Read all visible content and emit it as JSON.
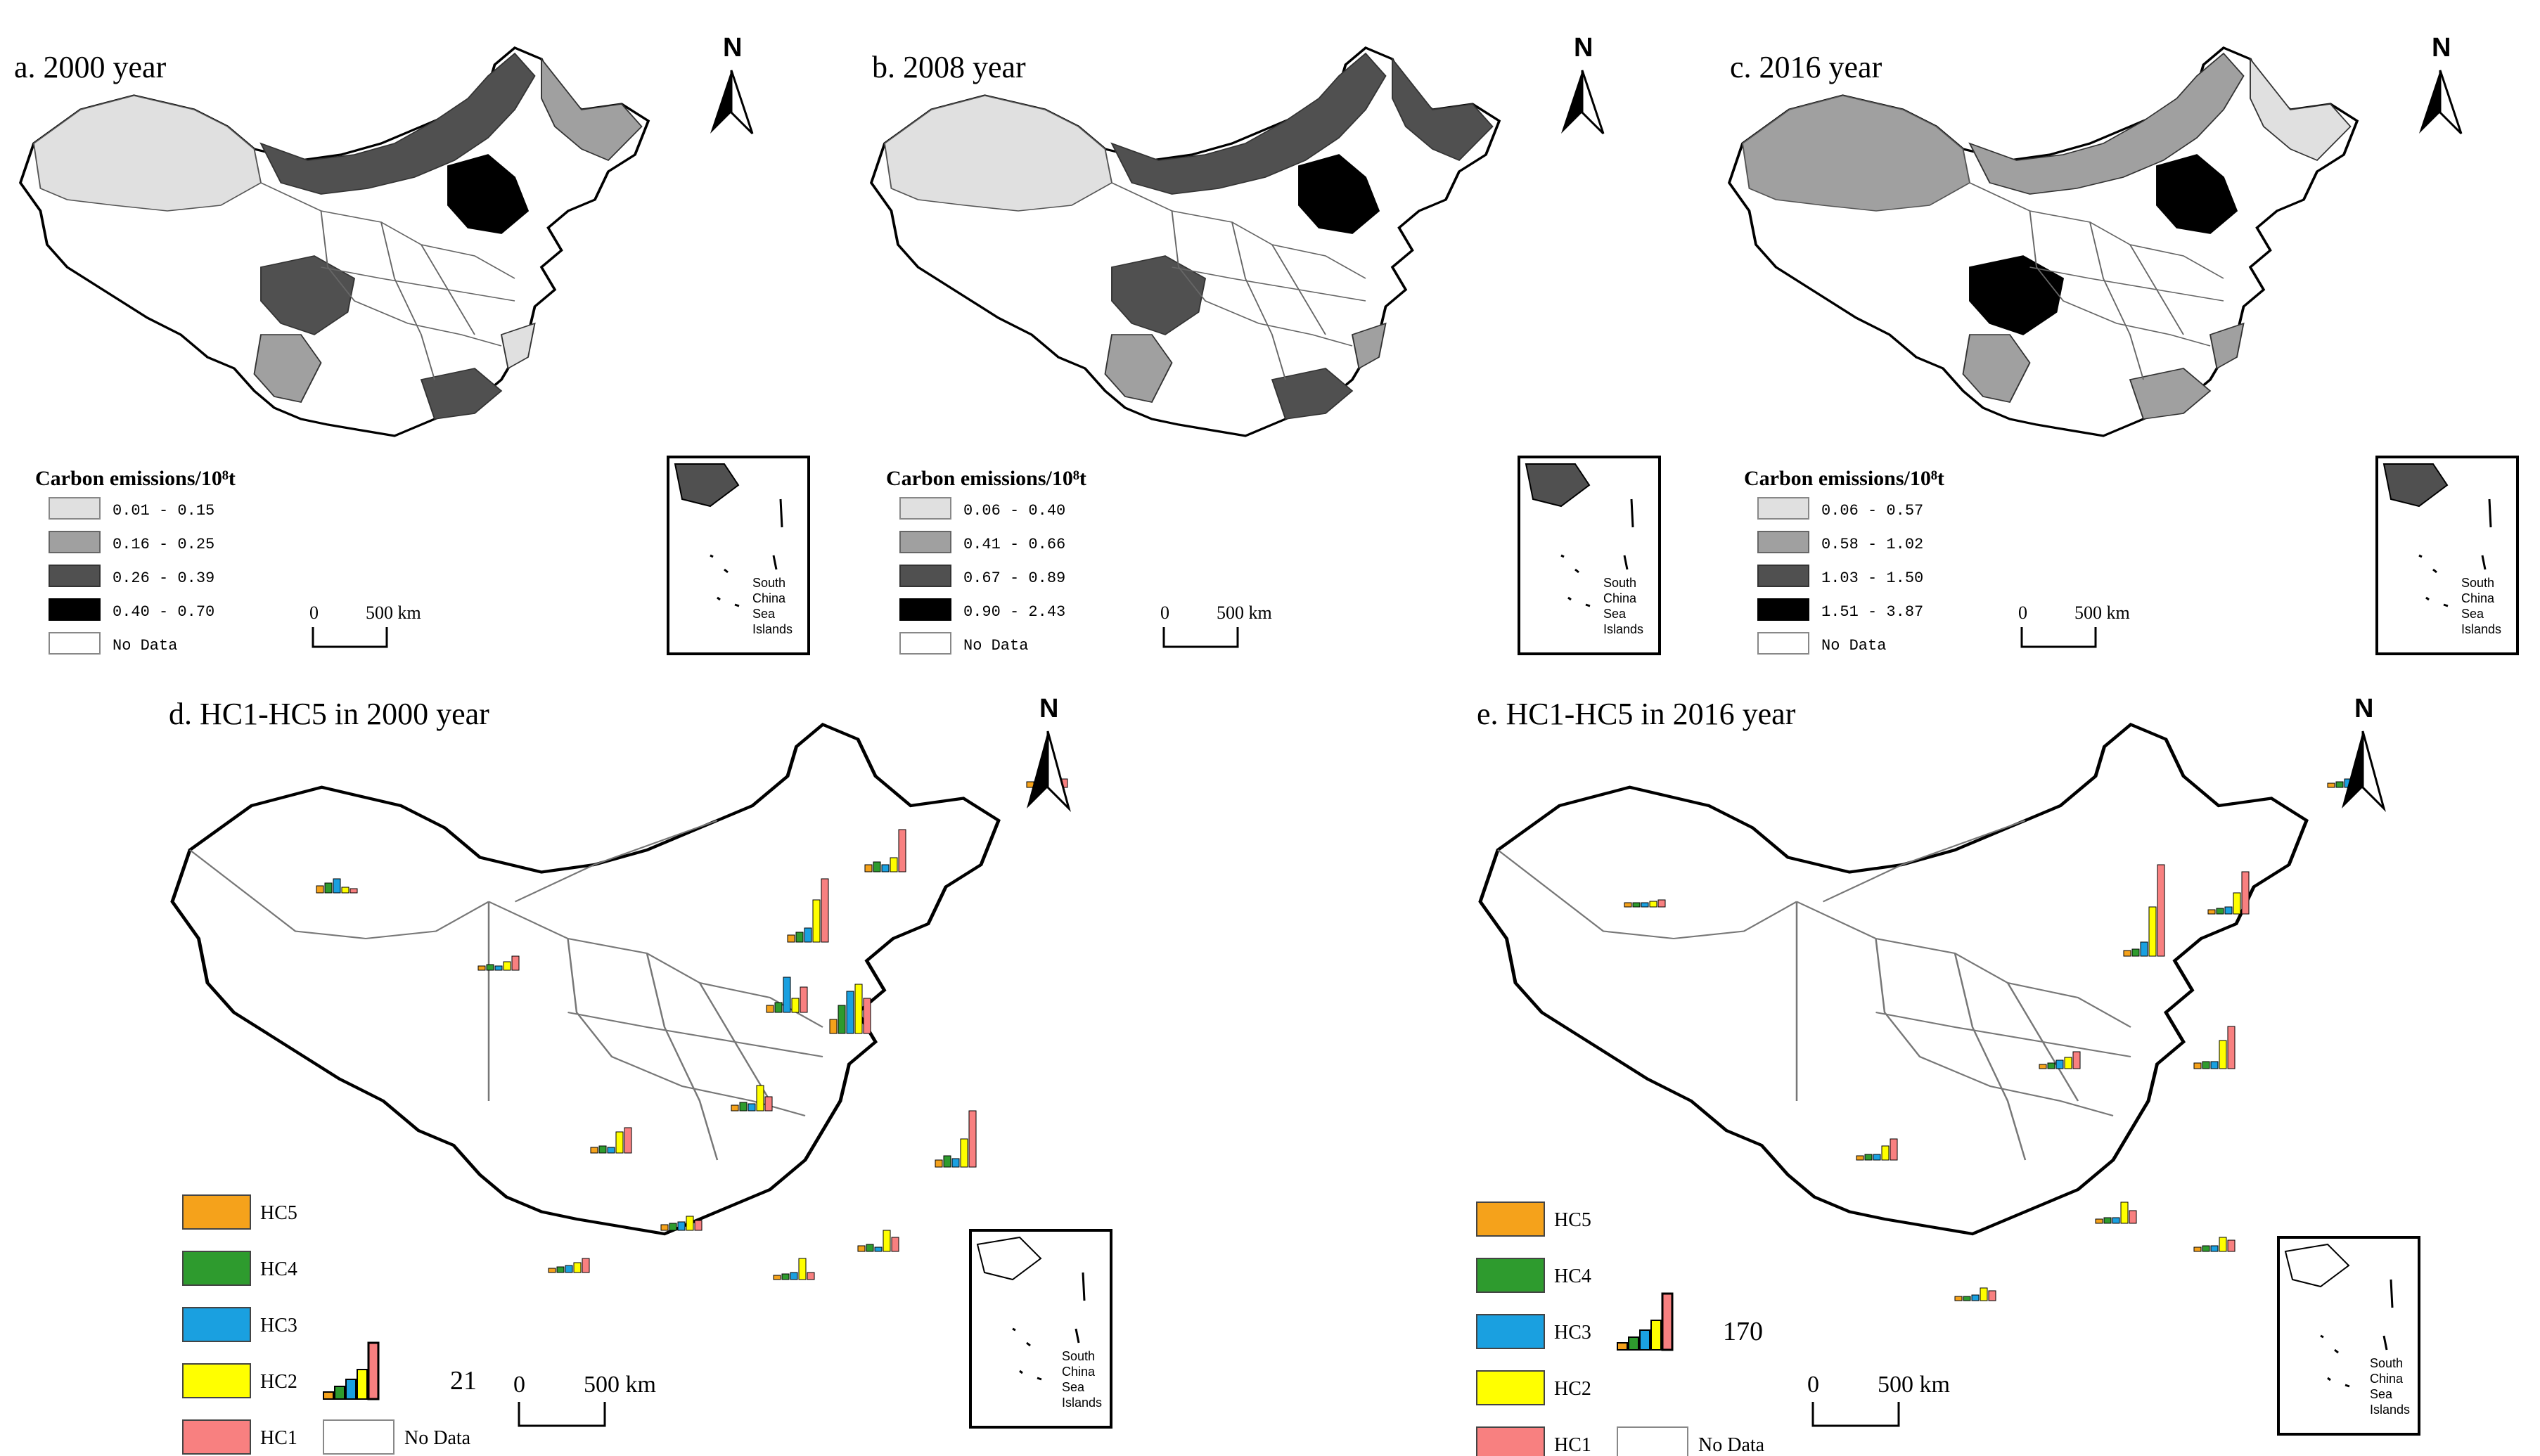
{
  "north_label": "N",
  "scale": {
    "zero": "0",
    "distance": "500 km"
  },
  "inset_label": [
    "South",
    "China",
    "Sea",
    "Islands"
  ],
  "colors": {
    "class1": "#e0e0e0",
    "class2": "#a0a0a0",
    "class3": "#505050",
    "class4": "#000000",
    "nodata": "#ffffff",
    "HC5": "#f5a21b",
    "HC4": "#2e9b2e",
    "HC3": "#1aa0e0",
    "HC2": "#ffff00",
    "HC1": "#f88080"
  },
  "maps": [
    {
      "id": "a",
      "title": "a. 2000 year",
      "legend_title": "Carbon emissions/10⁸t",
      "classes": [
        "0.01 - 0.15",
        "0.16 - 0.25",
        "0.26 - 0.39",
        "0.40 - 0.70"
      ],
      "nodata": "No Data"
    },
    {
      "id": "b",
      "title": "b. 2008 year",
      "legend_title": "Carbon emissions/10⁸t",
      "classes": [
        "0.06 - 0.40",
        "0.41 - 0.66",
        "0.67 - 0.89",
        "0.90 - 2.43"
      ],
      "nodata": "No Data"
    },
    {
      "id": "c",
      "title": "c. 2016 year",
      "legend_title": "Carbon emissions/10⁸t",
      "classes": [
        "0.06 - 0.57",
        "0.58 - 1.02",
        "1.03 - 1.50",
        "1.51 - 3.87"
      ],
      "nodata": "No Data"
    }
  ],
  "hc_maps": [
    {
      "id": "d",
      "title": "d. HC1-HC5 in 2000 year",
      "reference_value": "21",
      "legend": [
        "HC5",
        "HC4",
        "HC3",
        "HC2",
        "HC1"
      ],
      "nodata": "No Data"
    },
    {
      "id": "e",
      "title": "e. HC1-HC5 in 2016 year",
      "reference_value": "170",
      "legend": [
        "HC5",
        "HC4",
        "HC3",
        "HC2",
        "HC1"
      ],
      "nodata": "No Data"
    }
  ]
}
